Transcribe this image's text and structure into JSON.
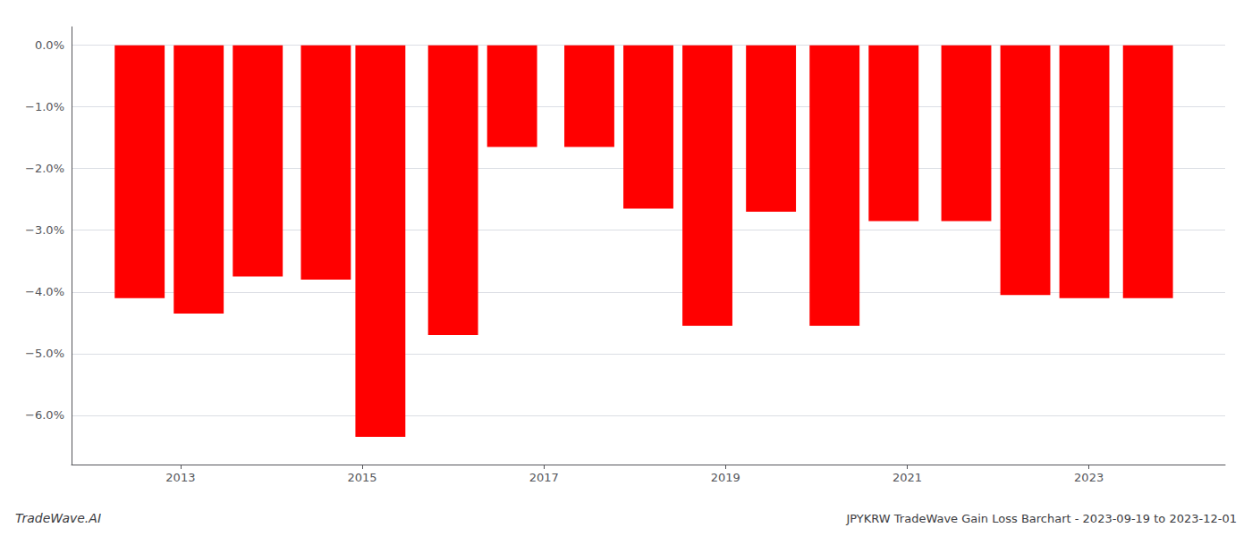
{
  "chart_data": {
    "type": "bar",
    "title": "JPYKRW TradeWave Gain Loss Barchart - 2023-09-19 to 2023-12-01",
    "annotations": [
      "TradeWave.AI"
    ],
    "x": [
      2012.55,
      2013.2,
      2013.85,
      2014.6,
      2015.2,
      2016.0,
      2016.65,
      2017.5,
      2018.15,
      2018.8,
      2019.5,
      2020.2,
      2020.85,
      2021.65,
      2022.3,
      2022.95,
      2023.65
    ],
    "values": [
      -0.041,
      -0.0435,
      -0.0375,
      -0.038,
      -0.0635,
      -0.047,
      -0.0165,
      -0.0165,
      -0.0265,
      -0.0455,
      -0.027,
      -0.0455,
      -0.0285,
      -0.0285,
      -0.0405,
      -0.041,
      -0.041
    ],
    "color": "#ff0000",
    "xlim": [
      2011.8,
      2024.5
    ],
    "xticks": [
      2013,
      2015,
      2017,
      2019,
      2021,
      2023
    ],
    "ylim": [
      -0.068,
      0.003
    ],
    "yticks": [
      {
        "value": 0.0,
        "label": "0.0%"
      },
      {
        "value": -0.01,
        "label": "−1.0%"
      },
      {
        "value": -0.02,
        "label": "−2.0%"
      },
      {
        "value": -0.03,
        "label": "−3.0%"
      },
      {
        "value": -0.04,
        "label": "−4.0%"
      },
      {
        "value": -0.05,
        "label": "−5.0%"
      },
      {
        "value": -0.06,
        "label": "−6.0%"
      }
    ],
    "grid": true
  }
}
